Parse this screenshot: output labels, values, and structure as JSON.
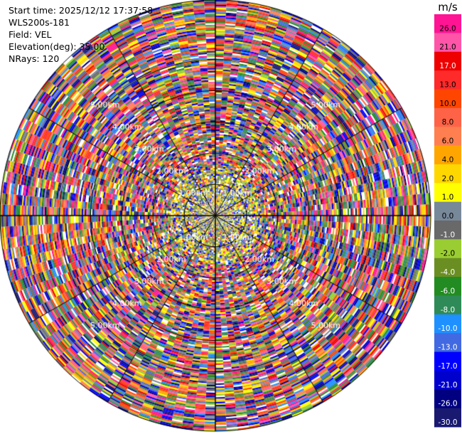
{
  "header": {
    "start_time": "Start time: 2025/12/12 17:37:58",
    "instrument": "WLS200s-181",
    "field": "Field: VEL",
    "elevation": "Elevation(deg): 35.00",
    "nrays": "NRays: 120"
  },
  "chart_data": {
    "type": "heatmap",
    "projection": "polar-ppi",
    "field": "VEL",
    "units": "m/s",
    "elevation_deg": 35.0,
    "n_rays": 120,
    "range_ring_labels": [
      "1.00km",
      "2.00km",
      "3.00km",
      "4.00km",
      "5.00km"
    ],
    "range_rings_km": [
      1,
      2,
      3,
      4,
      5
    ],
    "max_range_km": 6.9,
    "colorbar": {
      "unit_label": "m/s",
      "ticks": [
        "26.0",
        "21.0",
        "17.0",
        "13.0",
        "10.0",
        "8.0",
        "6.0",
        "4.0",
        "2.0",
        "1.0",
        "0.0",
        "-1.0",
        "-2.0",
        "-4.0",
        "-6.0",
        "-8.0",
        "-10.0",
        "-13.0",
        "-17.0",
        "-21.0",
        "-26.0",
        "-30.0"
      ],
      "colors_top_to_bottom": [
        "#ff1493",
        "#ff55a8",
        "#ee0000",
        "#ff2a2a",
        "#ff4500",
        "#ff6347",
        "#ff7f50",
        "#ffa500",
        "#ffd700",
        "#ffff00",
        "#778899",
        "#696969",
        "#9acd32",
        "#6b8e23",
        "#228b22",
        "#2e8b57",
        "#1e90ff",
        "#4169e1",
        "#0000ff",
        "#0000cd",
        "#000080",
        "#191970"
      ]
    }
  }
}
